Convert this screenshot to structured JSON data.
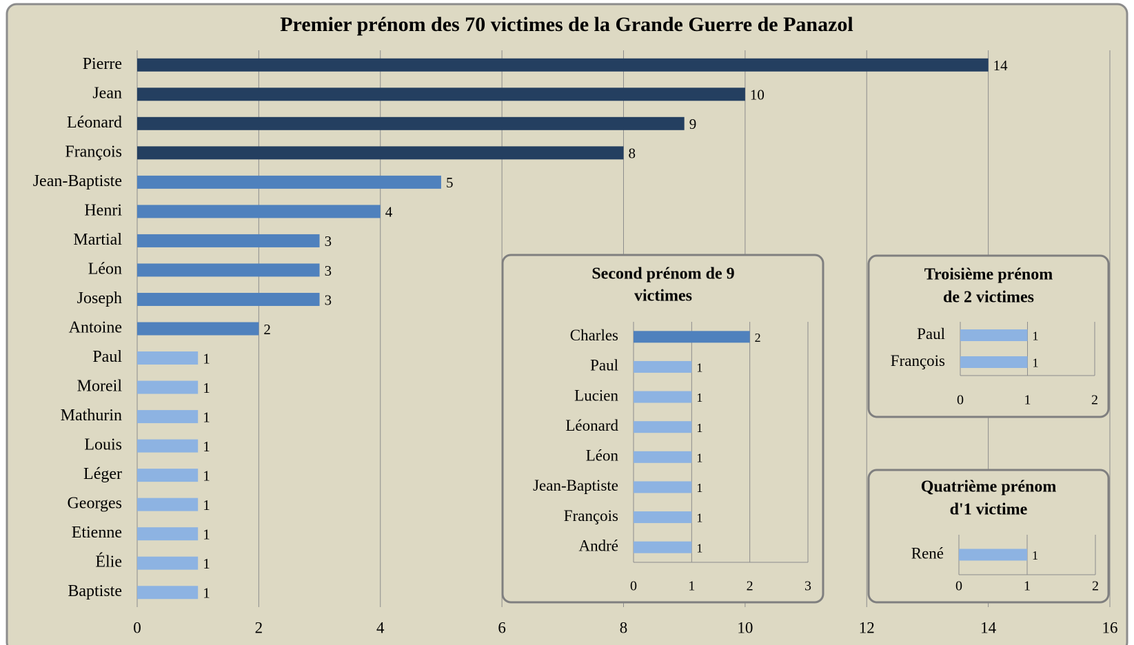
{
  "chart_data": [
    {
      "type": "bar",
      "title": "Premier prénom des 70 victimes de la Grande Guerre de Panazol",
      "categories": [
        "Pierre",
        "Jean",
        "Léonard",
        "François",
        "Jean-Baptiste",
        "Henri",
        "Martial",
        "Léon",
        "Joseph",
        "Antoine",
        "Paul",
        "Moreil",
        "Mathurin",
        "Louis",
        "Léger",
        "Georges",
        "Etienne",
        "Élie",
        "Baptiste"
      ],
      "values": [
        14,
        10,
        9,
        8,
        5,
        4,
        3,
        3,
        3,
        2,
        1,
        1,
        1,
        1,
        1,
        1,
        1,
        1,
        1
      ],
      "colors": [
        "#243f60",
        "#243f60",
        "#243f60",
        "#243f60",
        "#4f81bd",
        "#4f81bd",
        "#4f81bd",
        "#4f81bd",
        "#4f81bd",
        "#4f81bd",
        "#8db3e2",
        "#8db3e2",
        "#8db3e2",
        "#8db3e2",
        "#8db3e2",
        "#8db3e2",
        "#8db3e2",
        "#8db3e2",
        "#8db3e2"
      ],
      "xlim": [
        0,
        16
      ],
      "xticks": [
        0,
        2,
        4,
        6,
        8,
        10,
        12,
        14,
        16
      ],
      "grid": true
    },
    {
      "type": "bar",
      "title": [
        "Second prénom de 9",
        "victimes"
      ],
      "categories": [
        "Charles",
        "Paul",
        "Lucien",
        "Léonard",
        "Léon",
        "Jean-Baptiste",
        "François",
        "André"
      ],
      "values": [
        2,
        1,
        1,
        1,
        1,
        1,
        1,
        1
      ],
      "colors": [
        "#4f81bd",
        "#8db3e2",
        "#8db3e2",
        "#8db3e2",
        "#8db3e2",
        "#8db3e2",
        "#8db3e2",
        "#8db3e2"
      ],
      "xlim": [
        0,
        3
      ],
      "xticks": [
        0,
        1,
        2,
        3
      ],
      "grid": true
    },
    {
      "type": "bar",
      "title": [
        "Troisième prénom",
        "de 2 victimes"
      ],
      "categories": [
        "Paul",
        "François"
      ],
      "values": [
        1,
        1
      ],
      "colors": [
        "#8db3e2",
        "#8db3e2"
      ],
      "xlim": [
        0,
        2
      ],
      "xticks": [
        0,
        1,
        2
      ],
      "grid": true
    },
    {
      "type": "bar",
      "title": [
        "Quatrième prénom",
        "d'1 victime"
      ],
      "categories": [
        "René"
      ],
      "values": [
        1
      ],
      "colors": [
        "#8db3e2"
      ],
      "xlim": [
        0,
        2
      ],
      "xticks": [
        0,
        1,
        2
      ],
      "grid": true
    }
  ]
}
